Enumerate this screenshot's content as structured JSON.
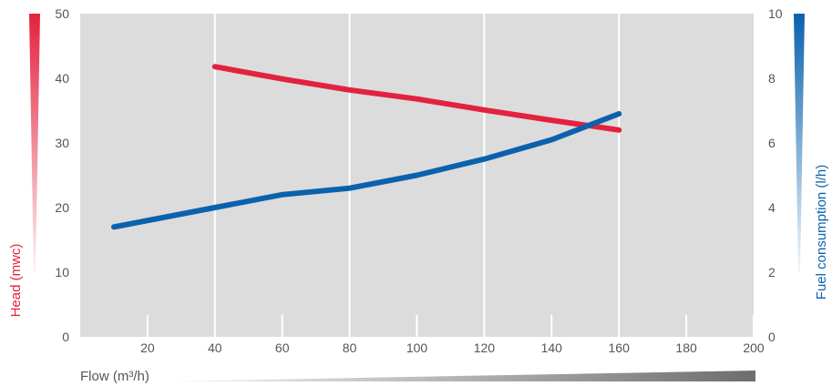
{
  "chart_data": {
    "type": "line",
    "xlabel": "Flow (m³/h)",
    "ylabel_left": "Head (mwc)",
    "ylabel_right": "Fuel consumption (l/h)",
    "x_ticks": [
      20,
      40,
      60,
      80,
      100,
      120,
      140,
      160,
      180,
      200
    ],
    "y_left_ticks": [
      0,
      10,
      20,
      30,
      40,
      50
    ],
    "y_right_ticks": [
      0,
      2,
      4,
      6,
      8,
      10
    ],
    "xlim": [
      0,
      200
    ],
    "ylim_left": [
      0,
      50
    ],
    "ylim_right": [
      0,
      10
    ],
    "grid": "vertical",
    "series": [
      {
        "axis": "left",
        "color": "#e3223e",
        "x": [
          40,
          60,
          80,
          100,
          120,
          140,
          160
        ],
        "values": [
          41.8,
          39.9,
          38.2,
          36.8,
          35.1,
          33.5,
          32.0
        ]
      },
      {
        "axis": "right",
        "color": "#0a62ad",
        "x": [
          10,
          40,
          60,
          80,
          100,
          120,
          140,
          160
        ],
        "values": [
          3.4,
          4.0,
          4.4,
          4.6,
          5.0,
          5.5,
          6.1,
          6.9
        ]
      }
    ],
    "colors": {
      "plot_bg": "#dcdcdc",
      "grid": "#ffffff",
      "left_axis": "#e3223e",
      "right_axis": "#0a62ad",
      "flow_wedge": "#6d6d6d"
    }
  }
}
